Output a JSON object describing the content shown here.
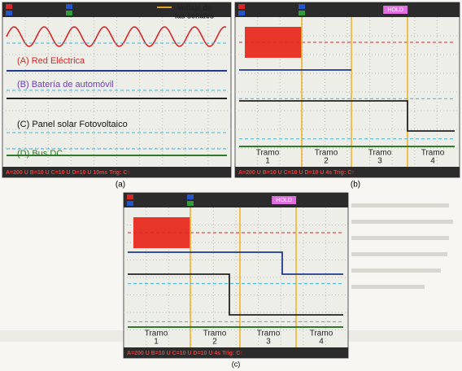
{
  "panel_a": {
    "caption": "(a)",
    "labels": [
      "(A) Red Eléctrica",
      "(B) Batería de automóvil",
      "(C) Panel solar Fotovoltaico",
      "(D) Bus DC"
    ],
    "annotation": [
      "Voltaje de",
      "las señales"
    ],
    "status": "A=200 U  B=10 U  C=10 U  D=10 U  10ms  Trig: C↑"
  },
  "panel_b": {
    "caption": "(b)",
    "mode": "HOLD",
    "segments": [
      {
        "name": "Tramo",
        "number": "1"
      },
      {
        "name": "Tramo",
        "number": "2"
      },
      {
        "name": "Tramo",
        "number": "3"
      },
      {
        "name": "Tramo",
        "number": "4"
      }
    ],
    "status": "A=200 U  B=10 U  C=10 U  D=10 U  4s  Trig: C↑"
  },
  "panel_c": {
    "caption": "(c)",
    "mode": "HOLD",
    "segments": [
      {
        "name": "Tramo",
        "number": "1"
      },
      {
        "name": "Tramo",
        "number": "2"
      },
      {
        "name": "Tramo",
        "number": "3"
      },
      {
        "name": "Tramo",
        "number": "4"
      }
    ],
    "status": "A=200 U  B=10 U  C=10 U  D=10 U  4s  Trig: C↑"
  }
}
